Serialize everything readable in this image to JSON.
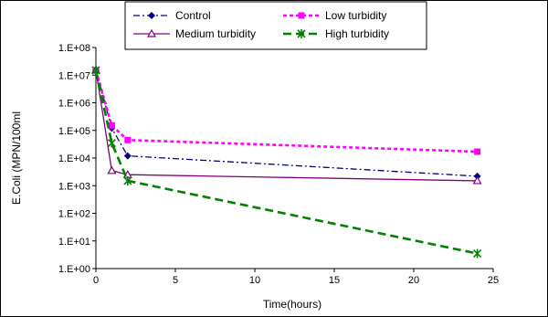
{
  "chart_data": {
    "type": "line",
    "title": "",
    "xlabel": "Time(hours)",
    "ylabel": "E.Coli (MPN/100ml",
    "xlim": [
      0,
      25
    ],
    "x_ticks": [
      0,
      5,
      10,
      15,
      20,
      25
    ],
    "y_scale": "log",
    "ylim": [
      1,
      100000000
    ],
    "y_ticks": [
      1,
      10,
      100,
      1000,
      10000,
      100000,
      1000000,
      10000000,
      100000000
    ],
    "y_tick_labels": [
      "1.E+00",
      "1.E+01",
      "1.E+02",
      "1.E+03",
      "1.E+04",
      "1.E+05",
      "1.E+06",
      "1.E+07",
      "1.E+08"
    ],
    "grid": false,
    "legend_position": "top",
    "series": [
      {
        "name": "Control",
        "color": "#000080",
        "line_style": "dash-dot",
        "marker": "diamond",
        "x": [
          0,
          1,
          2,
          24
        ],
        "y": [
          15000000,
          120000,
          12000,
          2200
        ]
      },
      {
        "name": "Low turbidity",
        "color": "#ff00ff",
        "line_style": "dotted",
        "marker": "square",
        "x": [
          0,
          1,
          2,
          24
        ],
        "y": [
          15000000,
          150000,
          45000,
          17000
        ]
      },
      {
        "name": "Medium turbidity",
        "color": "#800080",
        "line_style": "solid",
        "marker": "triangle",
        "x": [
          0,
          1,
          2,
          24
        ],
        "y": [
          15000000,
          3500,
          2500,
          1500
        ]
      },
      {
        "name": "High turbidity",
        "color": "#008000",
        "line_style": "dashed",
        "marker": "star",
        "x": [
          0,
          1,
          2,
          24
        ],
        "y": [
          15000000,
          35000,
          1500,
          3.5
        ]
      }
    ]
  }
}
